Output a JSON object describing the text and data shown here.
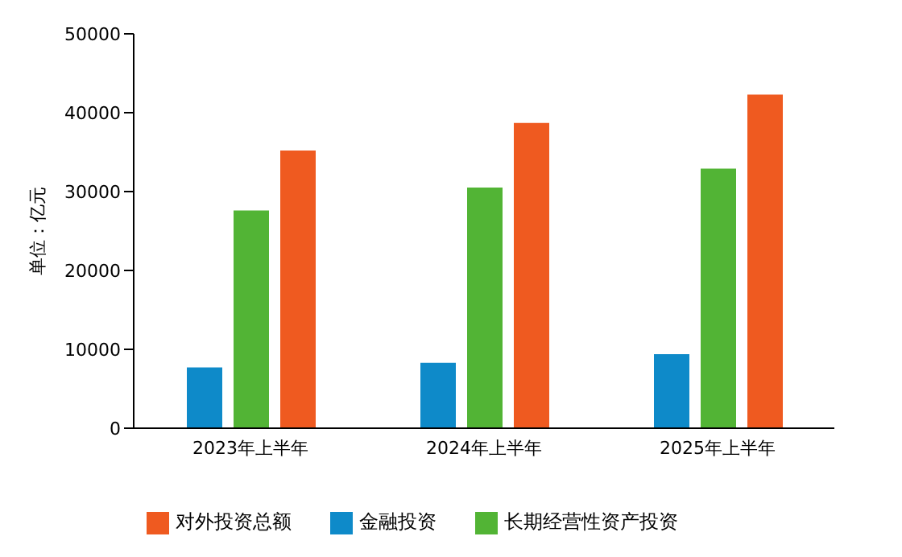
{
  "chart_data": {
    "type": "bar",
    "ylabel": "单位：亿元",
    "categories": [
      "2023年上半年",
      "2024年上半年",
      "2025年上半年"
    ],
    "series": [
      {
        "name": "金融投资",
        "color": "#0e8ac9",
        "values": [
          7700,
          8300,
          9400
        ]
      },
      {
        "name": "长期经营性资产投资",
        "color": "#52b435",
        "values": [
          27600,
          30500,
          32900
        ]
      },
      {
        "name": "对外投资总额",
        "color": "#ef5a20",
        "values": [
          35200,
          38700,
          42300
        ]
      }
    ],
    "ylim": [
      0,
      50000
    ],
    "yticks": [
      0,
      10000,
      20000,
      30000,
      40000,
      50000
    ],
    "grid": false,
    "legend": "bottom"
  }
}
